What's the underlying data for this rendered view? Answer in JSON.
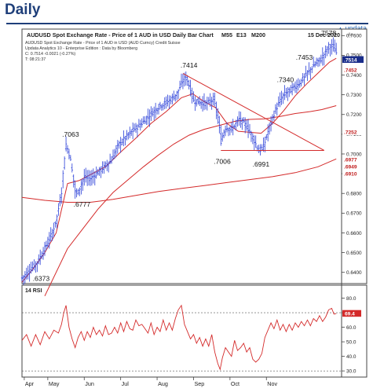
{
  "page": {
    "heading": "Daily",
    "brand": "updata",
    "brand_icon": "triangle-icon"
  },
  "main_chart": {
    "title": "AUDUSD Spot Exchange Rate - Price of 1 AUD in USD Daily Bar Chart",
    "indicators": [
      "M55",
      "E13",
      "M200"
    ],
    "date": "15 Dec 2020",
    "info_lines": [
      "AUDUSD Spot Exchange Rate - Price of 1 AUD in USD (AUD Curncy)  Credit Suisse",
      "Updata Analytics 10 - Enterprise Edition : Data by Bloomberg",
      "C: 0.7514  -0.0021 (-0.27%)",
      "T: 08:21:37"
    ],
    "axis_unit": "Ar",
    "colors": {
      "price_bars": "#2a3fd8",
      "moving_averages": "#d42a2a",
      "trend_lines": "#d42a2a"
    }
  },
  "chart_data": [
    {
      "type": "ohlc",
      "title": "AUDUSD Spot Exchange Rate - Price of 1 AUD in USD Daily Bar Chart",
      "x_labels": [
        "Apr",
        "May",
        "Jun",
        "Jul",
        "Aug",
        "Sep",
        "Oct",
        "Nov"
      ],
      "y_ticks": [
        0.64,
        0.65,
        0.66,
        0.67,
        0.68,
        0.69,
        0.7,
        0.71,
        0.72,
        0.73,
        0.74,
        0.75,
        0.76
      ],
      "y_tick_labels": [
        "0.6400",
        "0.6500",
        "0.6600",
        "0.6700",
        "0.6800",
        "0.6900",
        "0.7000",
        "0.7100",
        "0.7200",
        "0.7300",
        "0.7400",
        "0.7500",
        "0.7600"
      ],
      "ylim": [
        0.6343,
        0.7633
      ],
      "grid": false,
      "price_series": {
        "name": "AUDUSD",
        "approx_closes": [
          [
            0,
            0.637
          ],
          [
            10,
            0.641
          ],
          [
            20,
            0.645
          ],
          [
            30,
            0.652
          ],
          [
            40,
            0.66
          ],
          [
            46,
            0.668
          ],
          [
            52,
            0.681
          ],
          [
            56,
            0.6985
          ],
          [
            58,
            0.705
          ],
          [
            63,
            0.699
          ],
          [
            70,
            0.6815
          ],
          [
            72,
            0.6795
          ],
          [
            82,
            0.688
          ],
          [
            90,
            0.6875
          ],
          [
            104,
            0.692
          ],
          [
            118,
            0.697
          ],
          [
            126,
            0.704
          ],
          [
            138,
            0.709
          ],
          [
            148,
            0.7125
          ],
          [
            158,
            0.7155
          ],
          [
            170,
            0.7205
          ],
          [
            182,
            0.7245
          ],
          [
            194,
            0.727
          ],
          [
            204,
            0.7305
          ],
          [
            213,
            0.738
          ],
          [
            217,
            0.7385
          ],
          [
            226,
            0.727
          ],
          [
            236,
            0.726
          ],
          [
            244,
            0.7255
          ],
          [
            252,
            0.728
          ],
          [
            258,
            0.7185
          ],
          [
            262,
            0.7065
          ],
          [
            268,
            0.7135
          ],
          [
            276,
            0.7125
          ],
          [
            286,
            0.7175
          ],
          [
            296,
            0.714
          ],
          [
            304,
            0.7085
          ],
          [
            312,
            0.7015
          ],
          [
            318,
            0.7035
          ],
          [
            326,
            0.714
          ],
          [
            334,
            0.7225
          ],
          [
            344,
            0.7295
          ],
          [
            350,
            0.7315
          ],
          [
            360,
            0.734
          ],
          [
            368,
            0.737
          ],
          [
            378,
            0.742
          ],
          [
            386,
            0.7455
          ],
          [
            394,
            0.748
          ],
          [
            404,
            0.7545
          ],
          [
            410,
            0.7545
          ],
          [
            414,
            0.7514
          ]
        ]
      },
      "moving_averages": [
        {
          "label": "E13",
          "points": [
            [
              0,
              0.635
            ],
            [
              15,
              0.642
            ],
            [
              30,
              0.65
            ],
            [
              45,
              0.66
            ],
            [
              60,
              0.685
            ],
            [
              75,
              0.6865
            ],
            [
              90,
              0.6895
            ],
            [
              110,
              0.6935
            ],
            [
              130,
              0.701
            ],
            [
              150,
              0.708
            ],
            [
              170,
              0.7155
            ],
            [
              190,
              0.7215
            ],
            [
              210,
              0.7285
            ],
            [
              225,
              0.7305
            ],
            [
              240,
              0.7265
            ],
            [
              255,
              0.7235
            ],
            [
              270,
              0.7155
            ],
            [
              285,
              0.7115
            ],
            [
              300,
              0.711
            ],
            [
              315,
              0.7105
            ],
            [
              330,
              0.7155
            ],
            [
              345,
              0.722
            ],
            [
              360,
              0.7295
            ],
            [
              375,
              0.7355
            ],
            [
              390,
              0.741
            ],
            [
              405,
              0.7465
            ],
            [
              414,
              0.7485
            ]
          ]
        },
        {
          "label": "M55",
          "points": [
            [
              30,
              0.628
            ],
            [
              60,
              0.652
            ],
            [
              80,
              0.662
            ],
            [
              100,
              0.672
            ],
            [
              120,
              0.6805
            ],
            [
              140,
              0.687
            ],
            [
              160,
              0.6935
            ],
            [
              180,
              0.6995
            ],
            [
              200,
              0.705
            ],
            [
              220,
              0.7095
            ],
            [
              240,
              0.7125
            ],
            [
              260,
              0.7145
            ],
            [
              280,
              0.7165
            ],
            [
              300,
              0.7175
            ],
            [
              320,
              0.7178
            ],
            [
              340,
              0.719
            ],
            [
              360,
              0.7205
            ],
            [
              380,
              0.7215
            ],
            [
              395,
              0.7225
            ],
            [
              414,
              0.7245
            ]
          ]
        },
        {
          "label": "M200",
          "points": [
            [
              0,
              0.678
            ],
            [
              30,
              0.6765
            ],
            [
              60,
              0.6755
            ],
            [
              90,
              0.6755
            ],
            [
              120,
              0.677
            ],
            [
              150,
              0.679
            ],
            [
              180,
              0.681
            ],
            [
              210,
              0.6825
            ],
            [
              240,
              0.684
            ],
            [
              270,
              0.6855
            ],
            [
              300,
              0.687
            ],
            [
              330,
              0.6885
            ],
            [
              360,
              0.6905
            ],
            [
              390,
              0.6935
            ],
            [
              414,
              0.6975
            ]
          ]
        }
      ],
      "trend_lines": [
        {
          "from": [
            212,
            0.7408
          ],
          "to": [
            398,
            0.7018
          ]
        },
        {
          "from": [
            262,
            0.7018
          ],
          "to": [
            398,
            0.7018
          ]
        }
      ],
      "annotations": [
        {
          "text": ".6373",
          "x": 10,
          "y": 0.6373
        },
        {
          "text": ".7063",
          "x": 57,
          "y": 0.7063
        },
        {
          "text": ".6777",
          "x": 71,
          "y": 0.6777
        },
        {
          "text": ".7414",
          "x": 213,
          "y": 0.7414
        },
        {
          "text": ".7006",
          "x": 263,
          "y": 0.7006
        },
        {
          "text": ".6991",
          "x": 312,
          "y": 0.6991
        },
        {
          "text": ".7340",
          "x": 341,
          "y": 0.734
        },
        {
          "text": ".7453",
          "x": 366,
          "y": 0.7453
        },
        {
          "text": ".7578",
          "x": 400,
          "y": 0.7578
        }
      ],
      "price_markers": [
        {
          "label": ".7514",
          "style": "current"
        },
        {
          "label": ".7452"
        },
        {
          "label": ".7252"
        },
        {
          "label": ".6977"
        },
        {
          "label": ".6949"
        },
        {
          "label": ".6910"
        }
      ]
    },
    {
      "type": "line",
      "title": "14 RSI",
      "ylim": [
        29,
        83
      ],
      "y_ticks": [
        30,
        40,
        50,
        60,
        70,
        80
      ],
      "y_tick_labels": [
        "30.0",
        "40.0",
        "50.0",
        "60.0",
        "70.0",
        "80.0"
      ],
      "reference_lines": [
        30,
        70
      ],
      "current_value_label": "69.4",
      "series": [
        {
          "name": "",
          "points": [
            [
              0,
              51
            ],
            [
              6,
              55
            ],
            [
              12,
              47
            ],
            [
              18,
              55
            ],
            [
              24,
              48
            ],
            [
              30,
              57
            ],
            [
              36,
              52
            ],
            [
              42,
              58
            ],
            [
              48,
              56
            ],
            [
              52,
              62
            ],
            [
              55,
              70
            ],
            [
              58,
              75
            ],
            [
              62,
              60
            ],
            [
              66,
              52
            ],
            [
              70,
              46
            ],
            [
              74,
              53
            ],
            [
              78,
              57
            ],
            [
              82,
              51
            ],
            [
              86,
              57
            ],
            [
              90,
              53
            ],
            [
              94,
              60
            ],
            [
              98,
              55
            ],
            [
              102,
              58
            ],
            [
              106,
              54
            ],
            [
              110,
              61
            ],
            [
              114,
              55
            ],
            [
              118,
              56
            ],
            [
              122,
              60
            ],
            [
              126,
              56
            ],
            [
              130,
              63
            ],
            [
              134,
              57
            ],
            [
              138,
              64
            ],
            [
              142,
              59
            ],
            [
              146,
              58
            ],
            [
              150,
              65
            ],
            [
              154,
              61
            ],
            [
              158,
              62
            ],
            [
              162,
              59
            ],
            [
              166,
              56
            ],
            [
              170,
              63
            ],
            [
              174,
              55
            ],
            [
              178,
              60
            ],
            [
              182,
              57
            ],
            [
              186,
              65
            ],
            [
              190,
              58
            ],
            [
              194,
              63
            ],
            [
              198,
              58
            ],
            [
              202,
              66
            ],
            [
              206,
              72
            ],
            [
              210,
              75
            ],
            [
              214,
              62
            ],
            [
              218,
              57
            ],
            [
              222,
              52
            ],
            [
              226,
              55
            ],
            [
              230,
              49
            ],
            [
              234,
              53
            ],
            [
              238,
              47
            ],
            [
              242,
              52
            ],
            [
              246,
              47
            ],
            [
              250,
              55
            ],
            [
              254,
              43
            ],
            [
              258,
              35
            ],
            [
              261,
              31
            ],
            [
              264,
              39
            ],
            [
              268,
              46
            ],
            [
              272,
              43
            ],
            [
              276,
              40
            ],
            [
              280,
              51
            ],
            [
              284,
              44
            ],
            [
              288,
              46
            ],
            [
              292,
              49
            ],
            [
              296,
              43
            ],
            [
              300,
              46
            ],
            [
              304,
              38
            ],
            [
              308,
              36
            ],
            [
              312,
              38
            ],
            [
              316,
              42
            ],
            [
              320,
              53
            ],
            [
              324,
              58
            ],
            [
              328,
              63
            ],
            [
              332,
              59
            ],
            [
              336,
              65
            ],
            [
              340,
              58
            ],
            [
              344,
              62
            ],
            [
              348,
              57
            ],
            [
              352,
              62
            ],
            [
              356,
              58
            ],
            [
              360,
              63
            ],
            [
              364,
              60
            ],
            [
              368,
              64
            ],
            [
              372,
              61
            ],
            [
              376,
              65
            ],
            [
              380,
              61
            ],
            [
              384,
              66
            ],
            [
              388,
              64
            ],
            [
              392,
              68
            ],
            [
              396,
              64
            ],
            [
              400,
              67
            ],
            [
              404,
              72
            ],
            [
              408,
              73
            ],
            [
              411,
              69
            ],
            [
              414,
              69.4
            ]
          ]
        }
      ]
    }
  ]
}
